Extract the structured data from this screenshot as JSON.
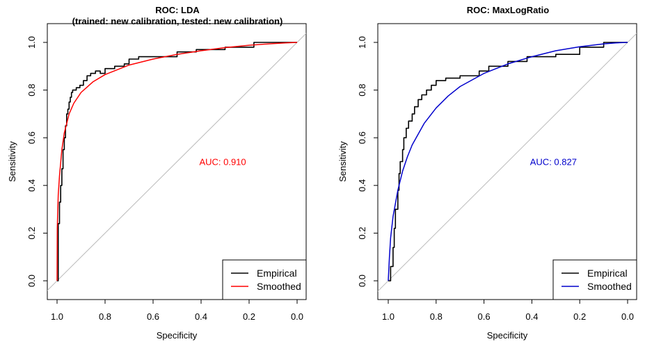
{
  "chart_data": [
    {
      "type": "line",
      "title": "ROC: LDA",
      "subtitle": "(trained: new calibration, tested: new calibration)",
      "xlabel": "Specificity",
      "ylabel": "Sensitivity",
      "x_reversed": true,
      "xlim": [
        1.0,
        0.0
      ],
      "ylim": [
        0.0,
        1.0
      ],
      "xticks": [
        "1.0",
        "0.8",
        "0.6",
        "0.4",
        "0.2",
        "0.0"
      ],
      "yticks": [
        "0.0",
        "0.2",
        "0.4",
        "0.6",
        "0.8",
        "1.0"
      ],
      "auc_text": "AUC: 0.910",
      "auc_color": "#ff0000",
      "legend_position": "bottom-right",
      "series": [
        {
          "name": "Empirical",
          "color": "#000000",
          "specificity": [
            1.0,
            0.995,
            0.995,
            0.99,
            0.99,
            0.985,
            0.985,
            0.98,
            0.98,
            0.975,
            0.975,
            0.97,
            0.97,
            0.965,
            0.965,
            0.96,
            0.96,
            0.955,
            0.955,
            0.95,
            0.95,
            0.945,
            0.945,
            0.94,
            0.94,
            0.935,
            0.935,
            0.92,
            0.92,
            0.905,
            0.905,
            0.89,
            0.89,
            0.875,
            0.875,
            0.86,
            0.86,
            0.84,
            0.84,
            0.82,
            0.82,
            0.8,
            0.8,
            0.76,
            0.76,
            0.72,
            0.72,
            0.7,
            0.7,
            0.66,
            0.66,
            0.5,
            0.5,
            0.42,
            0.42,
            0.3,
            0.3,
            0.18,
            0.18,
            0.0
          ],
          "sensitivity": [
            0.0,
            0.0,
            0.24,
            0.24,
            0.33,
            0.33,
            0.4,
            0.4,
            0.47,
            0.47,
            0.55,
            0.55,
            0.6,
            0.6,
            0.65,
            0.65,
            0.7,
            0.7,
            0.72,
            0.72,
            0.75,
            0.75,
            0.77,
            0.77,
            0.79,
            0.79,
            0.8,
            0.8,
            0.81,
            0.81,
            0.82,
            0.82,
            0.84,
            0.84,
            0.86,
            0.86,
            0.87,
            0.87,
            0.88,
            0.88,
            0.87,
            0.87,
            0.89,
            0.89,
            0.9,
            0.9,
            0.91,
            0.91,
            0.93,
            0.93,
            0.94,
            0.94,
            0.96,
            0.96,
            0.97,
            0.97,
            0.98,
            0.98,
            1.0,
            1.0
          ]
        },
        {
          "name": "Smoothed",
          "color": "#ff0000",
          "specificity": [
            1.0,
            0.999,
            0.995,
            0.99,
            0.98,
            0.97,
            0.95,
            0.93,
            0.9,
            0.85,
            0.8,
            0.75,
            0.7,
            0.6,
            0.5,
            0.4,
            0.3,
            0.2,
            0.1,
            0.05,
            0.0
          ],
          "sensitivity": [
            0.0,
            0.22,
            0.36,
            0.44,
            0.55,
            0.62,
            0.7,
            0.745,
            0.79,
            0.835,
            0.865,
            0.885,
            0.905,
            0.93,
            0.95,
            0.965,
            0.978,
            0.988,
            0.995,
            0.998,
            1.0
          ]
        }
      ]
    },
    {
      "type": "line",
      "title": "ROC: MaxLogRatio",
      "xlabel": "Specificity",
      "ylabel": "Sensitivity",
      "x_reversed": true,
      "xlim": [
        1.0,
        0.0
      ],
      "ylim": [
        0.0,
        1.0
      ],
      "xticks": [
        "1.0",
        "0.8",
        "0.6",
        "0.4",
        "0.2",
        "0.0"
      ],
      "yticks": [
        "0.0",
        "0.2",
        "0.4",
        "0.6",
        "0.8",
        "1.0"
      ],
      "auc_text": "AUC: 0.827",
      "auc_color": "#0000cc",
      "legend_position": "bottom-right",
      "series": [
        {
          "name": "Empirical",
          "color": "#000000",
          "specificity": [
            1.0,
            0.99,
            0.99,
            0.98,
            0.98,
            0.975,
            0.975,
            0.97,
            0.97,
            0.96,
            0.96,
            0.955,
            0.955,
            0.95,
            0.95,
            0.94,
            0.94,
            0.935,
            0.935,
            0.925,
            0.925,
            0.915,
            0.915,
            0.9,
            0.9,
            0.89,
            0.89,
            0.875,
            0.875,
            0.86,
            0.86,
            0.84,
            0.84,
            0.82,
            0.82,
            0.8,
            0.8,
            0.76,
            0.76,
            0.7,
            0.7,
            0.62,
            0.62,
            0.58,
            0.58,
            0.5,
            0.5,
            0.42,
            0.42,
            0.3,
            0.3,
            0.2,
            0.2,
            0.1,
            0.1,
            0.0
          ],
          "sensitivity": [
            0.0,
            0.0,
            0.06,
            0.06,
            0.14,
            0.14,
            0.22,
            0.22,
            0.3,
            0.3,
            0.38,
            0.38,
            0.45,
            0.45,
            0.5,
            0.5,
            0.55,
            0.55,
            0.6,
            0.6,
            0.64,
            0.64,
            0.67,
            0.67,
            0.7,
            0.7,
            0.73,
            0.73,
            0.76,
            0.76,
            0.78,
            0.78,
            0.8,
            0.8,
            0.82,
            0.82,
            0.84,
            0.84,
            0.85,
            0.85,
            0.86,
            0.86,
            0.88,
            0.88,
            0.9,
            0.9,
            0.92,
            0.92,
            0.94,
            0.94,
            0.95,
            0.95,
            0.98,
            0.98,
            1.0,
            1.0
          ]
        },
        {
          "name": "Smoothed",
          "color": "#0000cc",
          "specificity": [
            1.0,
            0.995,
            0.99,
            0.98,
            0.96,
            0.94,
            0.92,
            0.9,
            0.85,
            0.8,
            0.75,
            0.7,
            0.6,
            0.5,
            0.4,
            0.3,
            0.2,
            0.1,
            0.05,
            0.0
          ],
          "sensitivity": [
            0.0,
            0.1,
            0.18,
            0.27,
            0.38,
            0.46,
            0.52,
            0.57,
            0.66,
            0.725,
            0.775,
            0.815,
            0.87,
            0.91,
            0.94,
            0.965,
            0.982,
            0.994,
            0.998,
            1.0
          ]
        }
      ]
    }
  ]
}
